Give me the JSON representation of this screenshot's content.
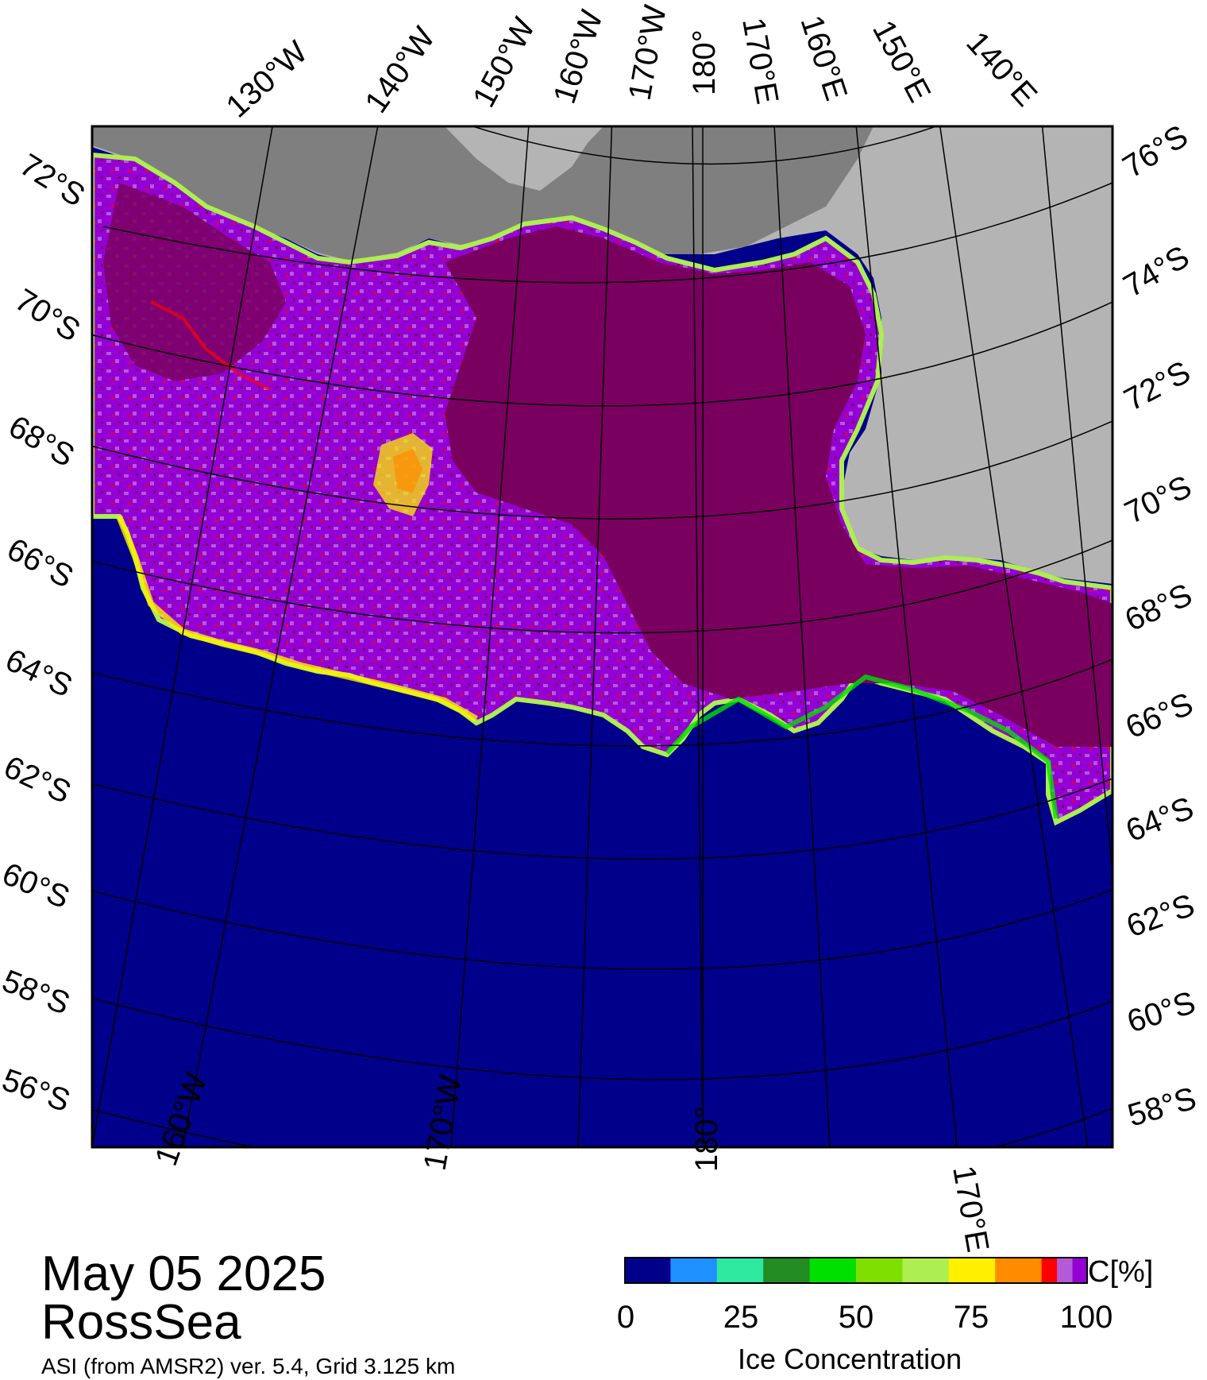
{
  "map": {
    "date": "May 05 2025",
    "region": "RossSea",
    "credit": "ASI (from AMSR2) ver. 5.4,  Grid 3.125 km",
    "colors": {
      "ocean": "#00008B",
      "land_light": "#B4B4B4",
      "land_dark": "#7F7F7F",
      "ice_full": "#7A0060",
      "ice_high": "#9400D3",
      "ice_mid": "#B45AD8"
    },
    "lon_labels_top": [
      "130°W",
      "140°W",
      "150°W",
      "160°W",
      "170°W",
      "180°",
      "170°E",
      "160°E",
      "150°E",
      "140°E"
    ],
    "lat_labels_left": [
      "72°S",
      "70°S",
      "68°S",
      "66°S",
      "64°S",
      "62°S",
      "60°S",
      "58°S",
      "56°S"
    ],
    "lat_labels_right": [
      "76°S",
      "74°S",
      "72°S",
      "70°S",
      "68°S",
      "66°S",
      "64°S",
      "62°S",
      "60°S",
      "58°S"
    ],
    "lon_labels_bottom": [
      "160°W",
      "170°W",
      "180°",
      "170°E"
    ]
  },
  "colorbar": {
    "title": "Ice Concentration",
    "unit": "C[%]",
    "ticks": [
      "0",
      "25",
      "50",
      "75",
      "100"
    ],
    "colors": [
      "#00008B",
      "#1E90FF",
      "#2EE8A0",
      "#228B22",
      "#00E000",
      "#7FE000",
      "#ADEE50",
      "#FFF000",
      "#FF8C00",
      "#FF0000",
      "#B45AD8",
      "#9400D3"
    ]
  }
}
